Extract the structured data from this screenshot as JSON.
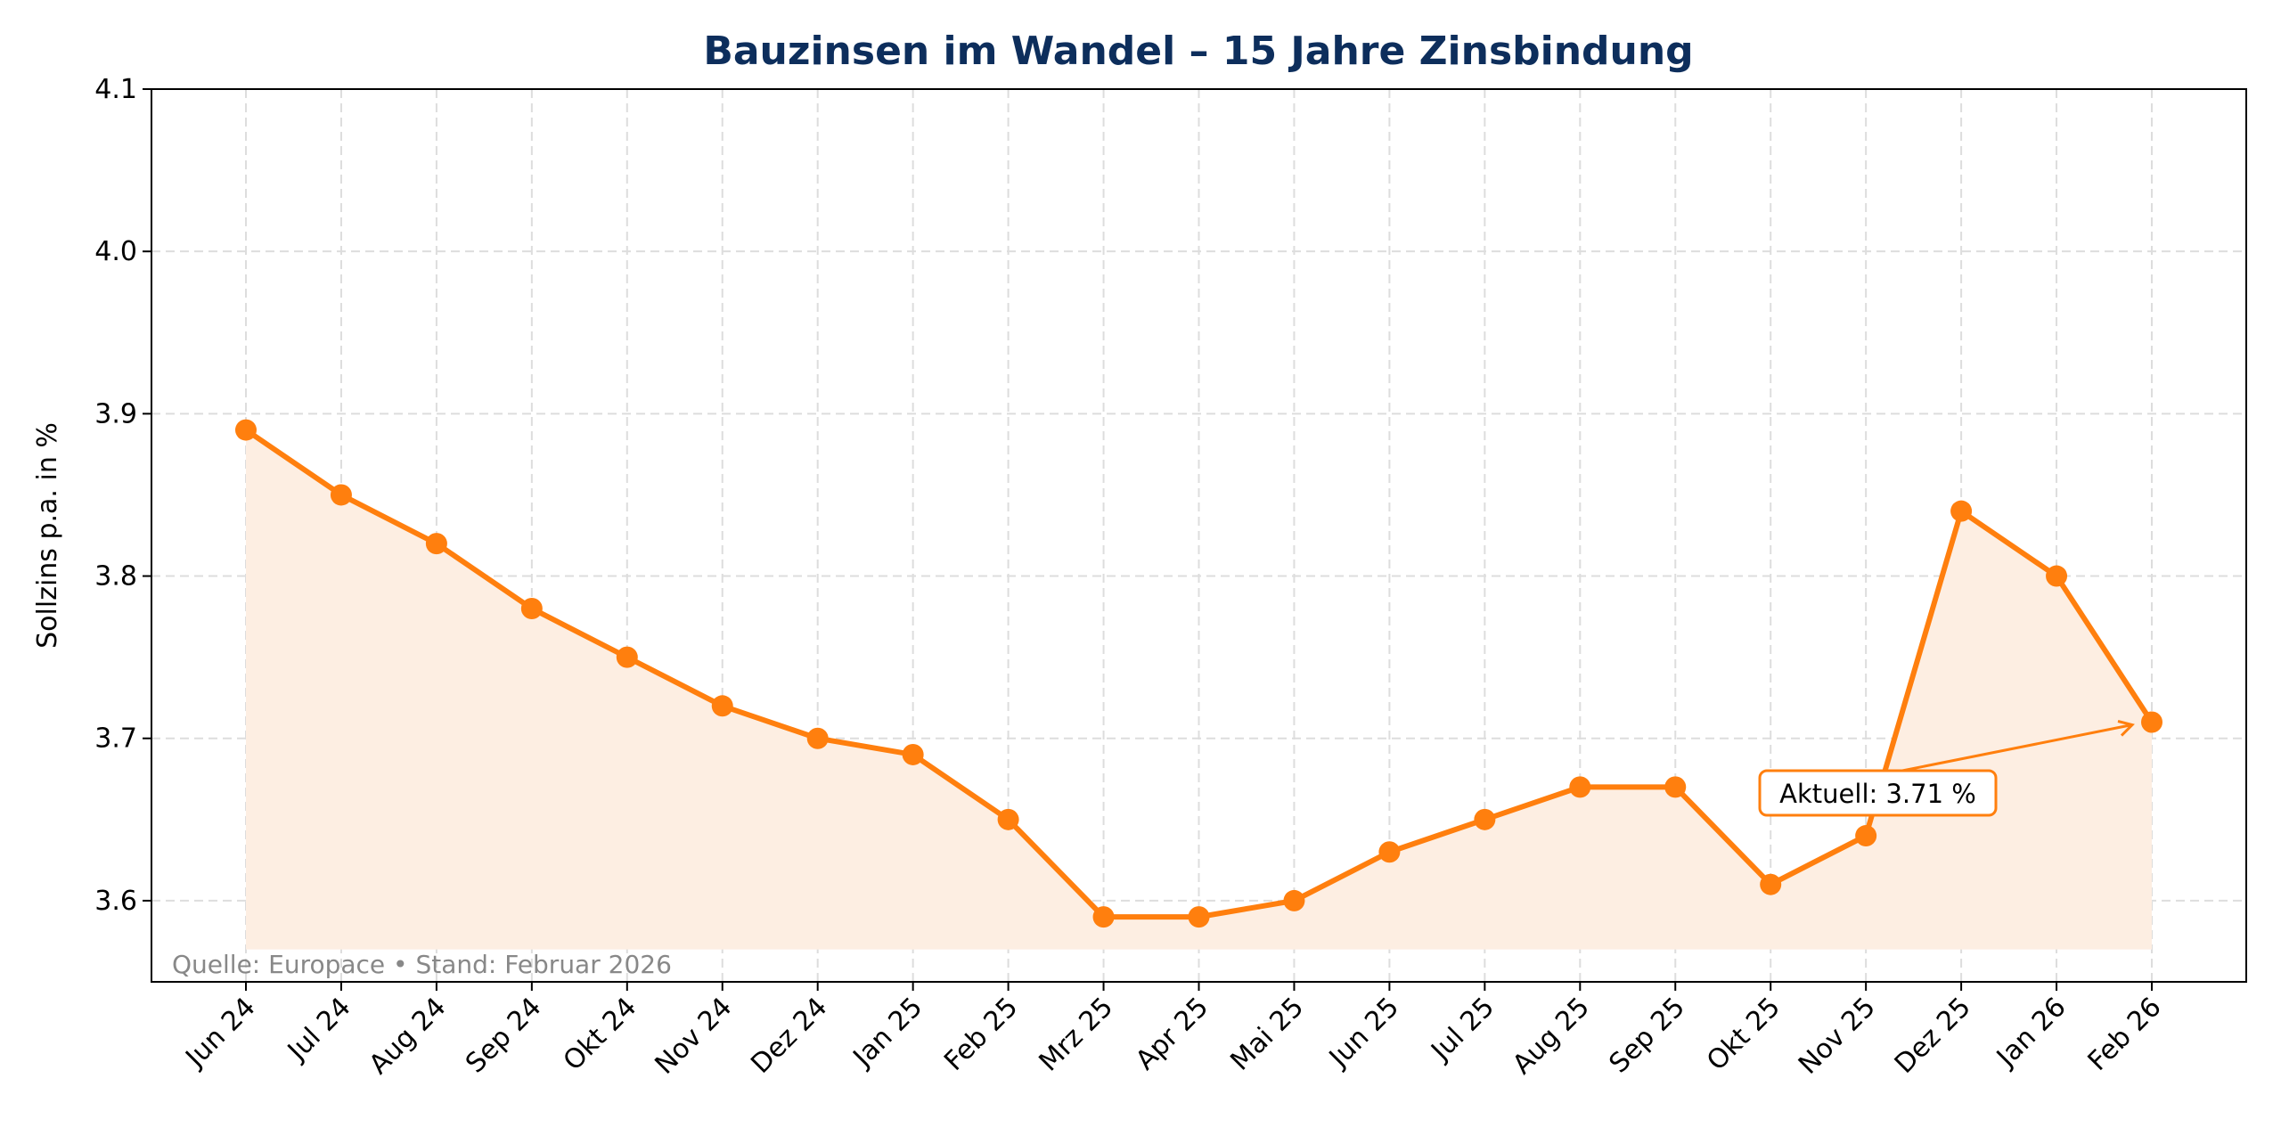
{
  "chart_data": {
    "type": "line",
    "title": "Bauzinsen im Wandel – 15 Jahre Zinsbindung",
    "xlabel": "",
    "ylabel": "Sollzins p.a. in %",
    "categories": [
      "Jun 24",
      "Jul 24",
      "Aug 24",
      "Sep 24",
      "Okt 24",
      "Nov 24",
      "Dez 24",
      "Jan 25",
      "Feb 25",
      "Mrz 25",
      "Apr 25",
      "Mai 25",
      "Jun 25",
      "Jul 25",
      "Aug 25",
      "Sep 25",
      "Okt 25",
      "Nov 25",
      "Dez 25",
      "Jan 26",
      "Feb 26"
    ],
    "values": [
      3.89,
      3.85,
      3.82,
      3.78,
      3.75,
      3.72,
      3.7,
      3.69,
      3.65,
      3.59,
      3.59,
      3.6,
      3.63,
      3.65,
      3.67,
      3.67,
      3.61,
      3.64,
      3.84,
      3.8,
      3.71
    ],
    "ylim": [
      3.55,
      4.1
    ],
    "yticks": [
      "3.6",
      "3.7",
      "3.8",
      "3.9",
      "4.0",
      "4.1"
    ],
    "fill_baseline": 3.57,
    "grid": true,
    "annotation": {
      "text": "Aktuell: 3.71 %",
      "target": "Feb 26"
    },
    "source_note": "Quelle: Europace • Stand: Februar 2026",
    "colors": {
      "line": "#ff7f0e",
      "fill": "#fdeee2",
      "title": "#0d2e5c",
      "grid": "#dddddd",
      "note": "#888888"
    }
  }
}
